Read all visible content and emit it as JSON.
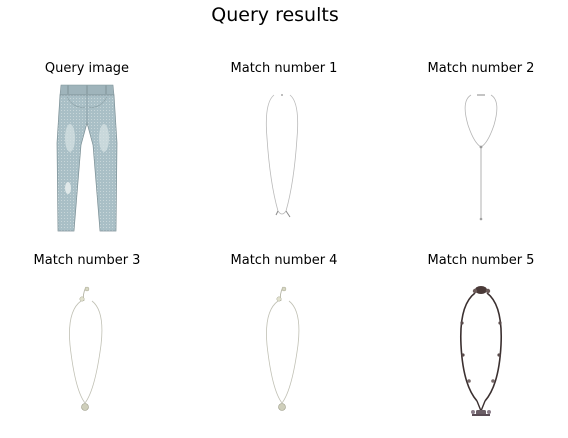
{
  "figure": {
    "title": "Query results"
  },
  "panels": [
    {
      "title": "Query image",
      "icon": "jeans-image"
    },
    {
      "title": "Match number 1",
      "icon": "thin-necklace-image"
    },
    {
      "title": "Match number 2",
      "icon": "lariat-necklace-image"
    },
    {
      "title": "Match number 3",
      "icon": "pendant-necklace-image"
    },
    {
      "title": "Match number 4",
      "icon": "pendant-necklace-image"
    },
    {
      "title": "Match number 5",
      "icon": "beaded-leather-necklace-image"
    }
  ]
}
